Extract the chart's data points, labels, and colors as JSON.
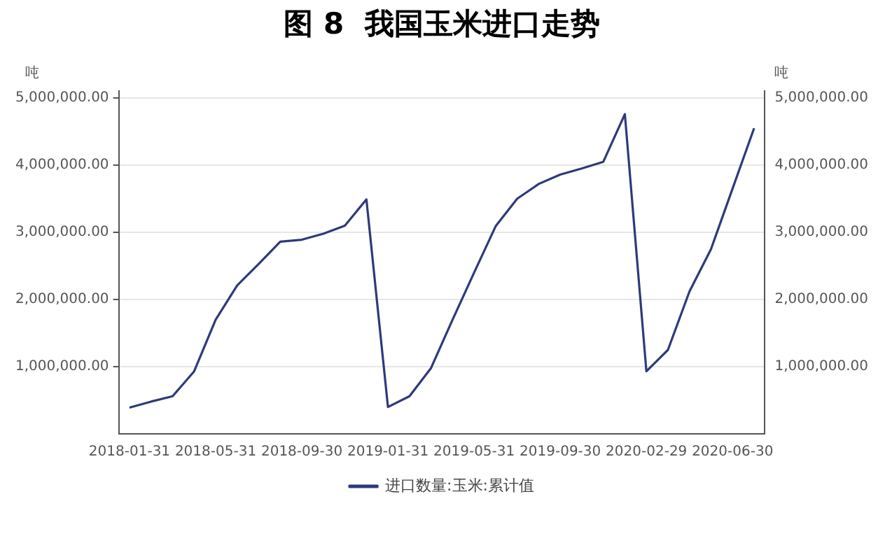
{
  "chart_data": {
    "type": "line",
    "title": "图 8  我国玉米进口走势",
    "ylabel": "吨",
    "y2label": "吨",
    "categories": [
      "2018-01-31",
      null,
      null,
      null,
      "2018-05-31",
      null,
      null,
      null,
      "2018-09-30",
      null,
      null,
      null,
      "2019-01-31",
      null,
      null,
      null,
      "2019-05-31",
      null,
      null,
      null,
      "2019-09-30",
      null,
      null,
      null,
      "2020-02-29",
      null,
      null,
      null,
      "2020-06-30",
      null
    ],
    "series": [
      {
        "name": "进口数量:玉米:累计值",
        "color": "#2e3a7a",
        "values": [
          390000,
          480000,
          560000,
          930000,
          1700000,
          2210000,
          2530000,
          2860000,
          2890000,
          2980000,
          3100000,
          3490000,
          400000,
          560000,
          980000,
          1700000,
          2400000,
          3090000,
          3500000,
          3720000,
          3860000,
          3950000,
          4050000,
          4760000,
          930000,
          1250000,
          2120000,
          2750000,
          3650000,
          4550000
        ]
      }
    ],
    "ylim": [
      0,
      5100000
    ],
    "yticks": [
      {
        "value": 1000000,
        "label": "1,000,000.00"
      },
      {
        "value": 2000000,
        "label": "2,000,000.00"
      },
      {
        "value": 3000000,
        "label": "3,000,000.00"
      },
      {
        "value": 4000000,
        "label": "4,000,000.00"
      },
      {
        "value": 5000000,
        "label": "5,000,000.00"
      }
    ],
    "y2lim": [
      0,
      5100000
    ],
    "y2ticks": [
      {
        "value": 1000000,
        "label": "1,000,000.00"
      },
      {
        "value": 2000000,
        "label": "2,000,000.00"
      },
      {
        "value": 3000000,
        "label": "3,000,000.00"
      },
      {
        "value": 4000000,
        "label": "4,000,000.00"
      },
      {
        "value": 5000000,
        "label": "5,000,000.00"
      }
    ],
    "grid": "y",
    "legend": "bottom",
    "marker": "none",
    "line_style": "solid"
  }
}
